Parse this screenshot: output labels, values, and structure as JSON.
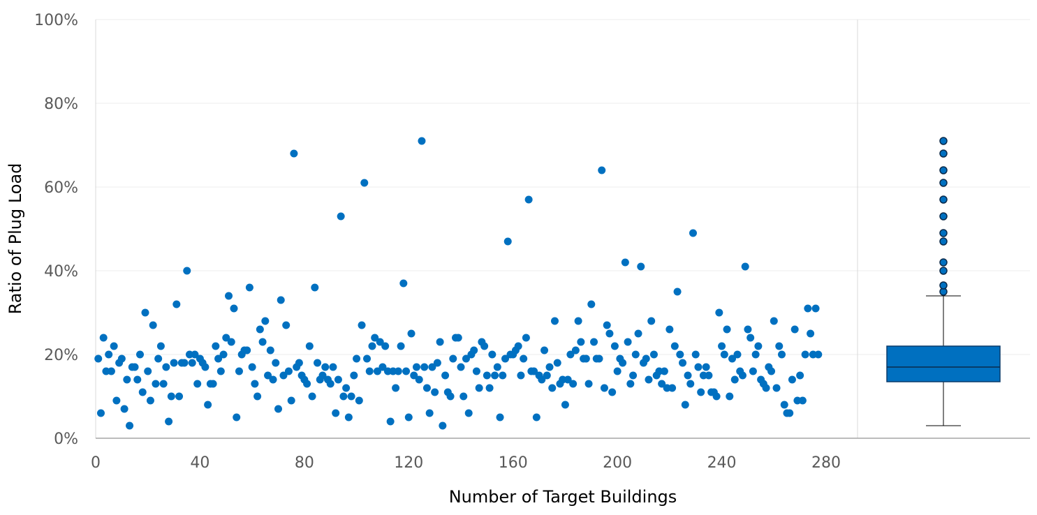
{
  "chart_data": {
    "type": "scatter",
    "xlabel": "Number of Target Buildings",
    "ylabel": "Ratio of Plug Load",
    "xlim": [
      0,
      280
    ],
    "ylim": [
      0,
      1
    ],
    "x_ticks": [
      "0",
      "40",
      "80",
      "120",
      "160",
      "200",
      "240",
      "280"
    ],
    "y_ticks": [
      "0%",
      "20%",
      "40%",
      "60%",
      "80%",
      "100%"
    ],
    "grid": true,
    "point_color": "#0070C0",
    "series": [
      {
        "values": [
          [
            1,
            0.19
          ],
          [
            2,
            0.06
          ],
          [
            3,
            0.24
          ],
          [
            4,
            0.16
          ],
          [
            5,
            0.2
          ],
          [
            6,
            0.16
          ],
          [
            7,
            0.22
          ],
          [
            8,
            0.09
          ],
          [
            9,
            0.18
          ],
          [
            10,
            0.19
          ],
          [
            11,
            0.07
          ],
          [
            12,
            0.14
          ],
          [
            13,
            0.03
          ],
          [
            14,
            0.17
          ],
          [
            15,
            0.17
          ],
          [
            16,
            0.14
          ],
          [
            17,
            0.2
          ],
          [
            18,
            0.11
          ],
          [
            19,
            0.3
          ],
          [
            20,
            0.16
          ],
          [
            21,
            0.09
          ],
          [
            22,
            0.27
          ],
          [
            23,
            0.13
          ],
          [
            24,
            0.19
          ],
          [
            25,
            0.22
          ],
          [
            26,
            0.13
          ],
          [
            27,
            0.17
          ],
          [
            28,
            0.04
          ],
          [
            29,
            0.1
          ],
          [
            30,
            0.18
          ],
          [
            31,
            0.32
          ],
          [
            32,
            0.1
          ],
          [
            33,
            0.18
          ],
          [
            34,
            0.18
          ],
          [
            35,
            0.4
          ],
          [
            36,
            0.2
          ],
          [
            37,
            0.18
          ],
          [
            38,
            0.2
          ],
          [
            39,
            0.13
          ],
          [
            40,
            0.19
          ],
          [
            41,
            0.18
          ],
          [
            42,
            0.17
          ],
          [
            43,
            0.08
          ],
          [
            44,
            0.13
          ],
          [
            45,
            0.13
          ],
          [
            46,
            0.22
          ],
          [
            47,
            0.19
          ],
          [
            48,
            0.16
          ],
          [
            49,
            0.2
          ],
          [
            50,
            0.24
          ],
          [
            51,
            0.34
          ],
          [
            52,
            0.23
          ],
          [
            53,
            0.31
          ],
          [
            54,
            0.05
          ],
          [
            55,
            0.16
          ],
          [
            56,
            0.2
          ],
          [
            57,
            0.21
          ],
          [
            58,
            0.21
          ],
          [
            59,
            0.36
          ],
          [
            60,
            0.17
          ],
          [
            61,
            0.13
          ],
          [
            62,
            0.1
          ],
          [
            63,
            0.26
          ],
          [
            64,
            0.23
          ],
          [
            65,
            0.28
          ],
          [
            66,
            0.15
          ],
          [
            67,
            0.21
          ],
          [
            68,
            0.14
          ],
          [
            69,
            0.18
          ],
          [
            70,
            0.07
          ],
          [
            71,
            0.33
          ],
          [
            72,
            0.15
          ],
          [
            73,
            0.27
          ],
          [
            74,
            0.16
          ],
          [
            75,
            0.09
          ],
          [
            76,
            0.68
          ],
          [
            77,
            0.17
          ],
          [
            78,
            0.18
          ],
          [
            79,
            0.15
          ],
          [
            80,
            0.14
          ],
          [
            81,
            0.13
          ],
          [
            82,
            0.22
          ],
          [
            83,
            0.1
          ],
          [
            84,
            0.36
          ],
          [
            85,
            0.18
          ],
          [
            86,
            0.14
          ],
          [
            87,
            0.15
          ],
          [
            88,
            0.17
          ],
          [
            89,
            0.14
          ],
          [
            90,
            0.13
          ],
          [
            91,
            0.17
          ],
          [
            92,
            0.06
          ],
          [
            93,
            0.14
          ],
          [
            94,
            0.53
          ],
          [
            95,
            0.1
          ],
          [
            96,
            0.12
          ],
          [
            97,
            0.05
          ],
          [
            98,
            0.1
          ],
          [
            99,
            0.15
          ],
          [
            100,
            0.19
          ],
          [
            101,
            0.09
          ],
          [
            102,
            0.27
          ],
          [
            103,
            0.61
          ],
          [
            104,
            0.19
          ],
          [
            105,
            0.16
          ],
          [
            106,
            0.22
          ],
          [
            107,
            0.24
          ],
          [
            108,
            0.16
          ],
          [
            109,
            0.23
          ],
          [
            110,
            0.17
          ],
          [
            111,
            0.22
          ],
          [
            112,
            0.16
          ],
          [
            113,
            0.04
          ],
          [
            114,
            0.16
          ],
          [
            115,
            0.12
          ],
          [
            116,
            0.16
          ],
          [
            117,
            0.22
          ],
          [
            118,
            0.37
          ],
          [
            119,
            0.16
          ],
          [
            120,
            0.05
          ],
          [
            121,
            0.25
          ],
          [
            122,
            0.15
          ],
          [
            123,
            0.17
          ],
          [
            124,
            0.14
          ],
          [
            125,
            0.71
          ],
          [
            126,
            0.17
          ],
          [
            127,
            0.12
          ],
          [
            128,
            0.06
          ],
          [
            129,
            0.17
          ],
          [
            130,
            0.11
          ],
          [
            131,
            0.18
          ],
          [
            132,
            0.23
          ],
          [
            133,
            0.03
          ],
          [
            134,
            0.15
          ],
          [
            135,
            0.11
          ],
          [
            136,
            0.1
          ],
          [
            137,
            0.19
          ],
          [
            138,
            0.24
          ],
          [
            139,
            0.24
          ],
          [
            140,
            0.17
          ],
          [
            141,
            0.1
          ],
          [
            142,
            0.19
          ],
          [
            143,
            0.06
          ],
          [
            144,
            0.2
          ],
          [
            145,
            0.21
          ],
          [
            146,
            0.16
          ],
          [
            147,
            0.12
          ],
          [
            148,
            0.23
          ],
          [
            149,
            0.22
          ],
          [
            150,
            0.15
          ],
          [
            151,
            0.12
          ],
          [
            152,
            0.2
          ],
          [
            153,
            0.15
          ],
          [
            154,
            0.17
          ],
          [
            155,
            0.05
          ],
          [
            156,
            0.15
          ],
          [
            157,
            0.19
          ],
          [
            158,
            0.47
          ],
          [
            159,
            0.2
          ],
          [
            160,
            0.2
          ],
          [
            161,
            0.21
          ],
          [
            162,
            0.22
          ],
          [
            163,
            0.15
          ],
          [
            164,
            0.19
          ],
          [
            165,
            0.24
          ],
          [
            166,
            0.57
          ],
          [
            167,
            0.16
          ],
          [
            168,
            0.16
          ],
          [
            169,
            0.05
          ],
          [
            170,
            0.15
          ],
          [
            171,
            0.14
          ],
          [
            172,
            0.21
          ],
          [
            173,
            0.15
          ],
          [
            174,
            0.17
          ],
          [
            175,
            0.12
          ],
          [
            176,
            0.28
          ],
          [
            177,
            0.18
          ],
          [
            178,
            0.13
          ],
          [
            179,
            0.14
          ],
          [
            180,
            0.08
          ],
          [
            181,
            0.14
          ],
          [
            182,
            0.2
          ],
          [
            183,
            0.13
          ],
          [
            184,
            0.21
          ],
          [
            185,
            0.28
          ],
          [
            186,
            0.23
          ],
          [
            187,
            0.19
          ],
          [
            188,
            0.19
          ],
          [
            189,
            0.13
          ],
          [
            190,
            0.32
          ],
          [
            191,
            0.23
          ],
          [
            192,
            0.19
          ],
          [
            193,
            0.19
          ],
          [
            194,
            0.64
          ],
          [
            195,
            0.12
          ],
          [
            196,
            0.27
          ],
          [
            197,
            0.25
          ],
          [
            198,
            0.11
          ],
          [
            199,
            0.22
          ],
          [
            200,
            0.16
          ],
          [
            201,
            0.19
          ],
          [
            202,
            0.18
          ],
          [
            203,
            0.42
          ],
          [
            204,
            0.23
          ],
          [
            205,
            0.13
          ],
          [
            206,
            0.15
          ],
          [
            207,
            0.2
          ],
          [
            208,
            0.25
          ],
          [
            209,
            0.41
          ],
          [
            210,
            0.18
          ],
          [
            211,
            0.19
          ],
          [
            212,
            0.14
          ],
          [
            213,
            0.28
          ],
          [
            214,
            0.2
          ],
          [
            215,
            0.15
          ],
          [
            216,
            0.16
          ],
          [
            217,
            0.13
          ],
          [
            218,
            0.16
          ],
          [
            219,
            0.12
          ],
          [
            220,
            0.26
          ],
          [
            221,
            0.12
          ],
          [
            222,
            0.22
          ],
          [
            223,
            0.35
          ],
          [
            224,
            0.2
          ],
          [
            225,
            0.18
          ],
          [
            226,
            0.08
          ],
          [
            227,
            0.15
          ],
          [
            228,
            0.13
          ],
          [
            229,
            0.49
          ],
          [
            230,
            0.2
          ],
          [
            231,
            0.17
          ],
          [
            232,
            0.11
          ],
          [
            233,
            0.15
          ],
          [
            234,
            0.17
          ],
          [
            235,
            0.15
          ],
          [
            236,
            0.11
          ],
          [
            237,
            0.11
          ],
          [
            238,
            0.1
          ],
          [
            239,
            0.3
          ],
          [
            240,
            0.22
          ],
          [
            241,
            0.2
          ],
          [
            242,
            0.26
          ],
          [
            243,
            0.1
          ],
          [
            244,
            0.19
          ],
          [
            245,
            0.14
          ],
          [
            246,
            0.2
          ],
          [
            247,
            0.16
          ],
          [
            248,
            0.15
          ],
          [
            249,
            0.41
          ],
          [
            250,
            0.26
          ],
          [
            251,
            0.24
          ],
          [
            252,
            0.16
          ],
          [
            253,
            0.2
          ],
          [
            254,
            0.22
          ],
          [
            255,
            0.14
          ],
          [
            256,
            0.13
          ],
          [
            257,
            0.12
          ],
          [
            258,
            0.17
          ],
          [
            259,
            0.16
          ],
          [
            260,
            0.28
          ],
          [
            261,
            0.12
          ],
          [
            262,
            0.22
          ],
          [
            263,
            0.2
          ],
          [
            264,
            0.08
          ],
          [
            265,
            0.06
          ],
          [
            266,
            0.06
          ],
          [
            267,
            0.14
          ],
          [
            268,
            0.26
          ],
          [
            269,
            0.09
          ],
          [
            270,
            0.15
          ],
          [
            271,
            0.09
          ],
          [
            272,
            0.2
          ],
          [
            273,
            0.31
          ],
          [
            274,
            0.25
          ],
          [
            275,
            0.2
          ],
          [
            276,
            0.31
          ],
          [
            277,
            0.2
          ]
        ]
      }
    ],
    "boxplot": {
      "min": 0.03,
      "q1": 0.135,
      "median": 0.17,
      "q3": 0.22,
      "whisker_high": 0.34,
      "outliers": [
        0.35,
        0.365,
        0.4,
        0.42,
        0.47,
        0.49,
        0.53,
        0.57,
        0.61,
        0.64,
        0.68,
        0.71
      ],
      "fill_color": "#0070C0"
    }
  }
}
